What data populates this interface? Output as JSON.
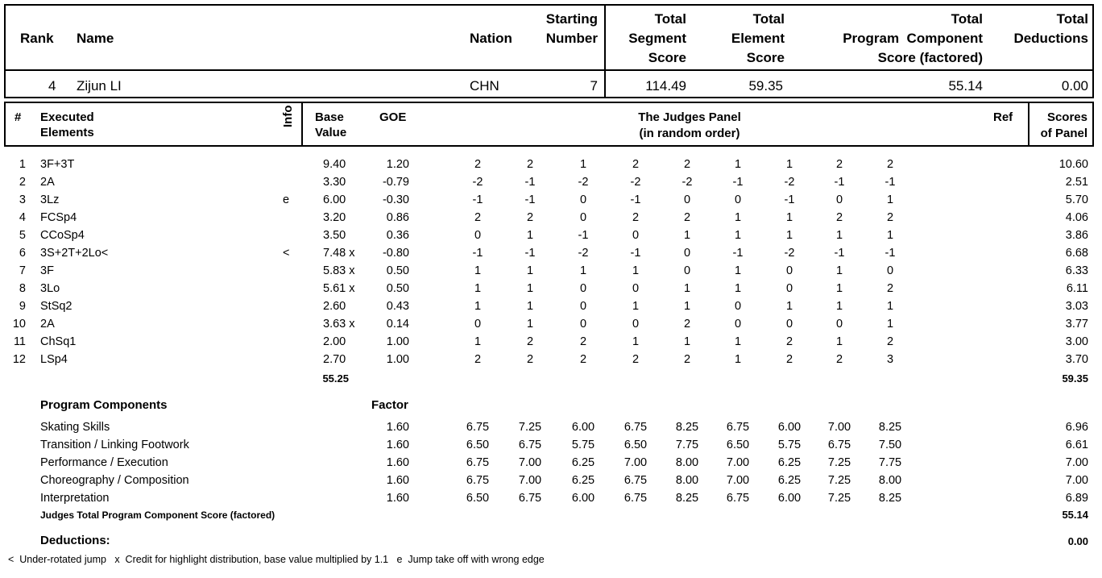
{
  "header": {
    "rank_label": "Rank",
    "name_label": "Name",
    "nation_label": "Nation",
    "starting_label": [
      "Starting",
      "Number"
    ],
    "tss_label": [
      "Total",
      "Segment",
      "Score"
    ],
    "tes_label": [
      "Total",
      "Element",
      "Score"
    ],
    "pcs_label": [
      "Total",
      "Program  Component",
      "Score (factored)"
    ],
    "ded_label": [
      "Total",
      "Deductions"
    ]
  },
  "skater": {
    "rank": "4",
    "name": "Zijun LI",
    "nation": "CHN",
    "starting_number": "7",
    "tss": "114.49",
    "tes": "59.35",
    "pcs": "55.14",
    "deductions": "0.00"
  },
  "elements_header": {
    "num": "#",
    "executed": [
      "Executed",
      "Elements"
    ],
    "info": "Info",
    "base": [
      "Base",
      "Value"
    ],
    "goe": "GOE",
    "judges": [
      "The Judges Panel",
      "(in random order)"
    ],
    "ref": "Ref",
    "scores": [
      "Scores",
      "of Panel"
    ]
  },
  "elements": [
    {
      "n": "1",
      "name": "3F+3T",
      "info": "",
      "base": "9.40",
      "goe": "1.20",
      "judges": [
        "2",
        "2",
        "1",
        "2",
        "2",
        "1",
        "1",
        "2",
        "2"
      ],
      "score": "10.60"
    },
    {
      "n": "2",
      "name": "2A",
      "info": "",
      "base": "3.30",
      "goe": "-0.79",
      "judges": [
        "-2",
        "-1",
        "-2",
        "-2",
        "-2",
        "-1",
        "-2",
        "-1",
        "-1"
      ],
      "score": "2.51"
    },
    {
      "n": "3",
      "name": "3Lz",
      "info": "e",
      "base": "6.00",
      "goe": "-0.30",
      "judges": [
        "-1",
        "-1",
        "0",
        "-1",
        "0",
        "0",
        "-1",
        "0",
        "1"
      ],
      "score": "5.70"
    },
    {
      "n": "4",
      "name": "FCSp4",
      "info": "",
      "base": "3.20",
      "goe": "0.86",
      "judges": [
        "2",
        "2",
        "0",
        "2",
        "2",
        "1",
        "1",
        "2",
        "2"
      ],
      "score": "4.06"
    },
    {
      "n": "5",
      "name": "CCoSp4",
      "info": "",
      "base": "3.50",
      "goe": "0.36",
      "judges": [
        "0",
        "1",
        "-1",
        "0",
        "1",
        "1",
        "1",
        "1",
        "1"
      ],
      "score": "3.86"
    },
    {
      "n": "6",
      "name": "3S+2T+2Lo<",
      "info": "<",
      "base": "7.48 x",
      "goe": "-0.80",
      "judges": [
        "-1",
        "-1",
        "-2",
        "-1",
        "0",
        "-1",
        "-2",
        "-1",
        "-1"
      ],
      "score": "6.68"
    },
    {
      "n": "7",
      "name": "3F",
      "info": "",
      "base": "5.83 x",
      "goe": "0.50",
      "judges": [
        "1",
        "1",
        "1",
        "1",
        "0",
        "1",
        "0",
        "1",
        "0"
      ],
      "score": "6.33"
    },
    {
      "n": "8",
      "name": "3Lo",
      "info": "",
      "base": "5.61 x",
      "goe": "0.50",
      "judges": [
        "1",
        "1",
        "0",
        "0",
        "1",
        "1",
        "0",
        "1",
        "2"
      ],
      "score": "6.11"
    },
    {
      "n": "9",
      "name": "StSq2",
      "info": "",
      "base": "2.60",
      "goe": "0.43",
      "judges": [
        "1",
        "1",
        "0",
        "1",
        "1",
        "0",
        "1",
        "1",
        "1"
      ],
      "score": "3.03"
    },
    {
      "n": "10",
      "name": "2A",
      "info": "",
      "base": "3.63 x",
      "goe": "0.14",
      "judges": [
        "0",
        "1",
        "0",
        "0",
        "2",
        "0",
        "0",
        "0",
        "1"
      ],
      "score": "3.77"
    },
    {
      "n": "11",
      "name": "ChSq1",
      "info": "",
      "base": "2.00",
      "goe": "1.00",
      "judges": [
        "1",
        "2",
        "2",
        "1",
        "1",
        "1",
        "2",
        "1",
        "2"
      ],
      "score": "3.00"
    },
    {
      "n": "12",
      "name": "LSp4",
      "info": "",
      "base": "2.70",
      "goe": "1.00",
      "judges": [
        "2",
        "2",
        "2",
        "2",
        "2",
        "1",
        "2",
        "2",
        "3"
      ],
      "score": "3.70"
    }
  ],
  "base_total": "55.25",
  "tes_total": "59.35",
  "components_header": {
    "title": "Program Components",
    "factor": "Factor"
  },
  "components": [
    {
      "name": "Skating Skills",
      "factor": "1.60",
      "judges": [
        "6.75",
        "7.25",
        "6.00",
        "6.75",
        "8.25",
        "6.75",
        "6.00",
        "7.00",
        "8.25"
      ],
      "score": "6.96"
    },
    {
      "name": "Transition / Linking Footwork",
      "factor": "1.60",
      "judges": [
        "6.50",
        "6.75",
        "5.75",
        "6.50",
        "7.75",
        "6.50",
        "5.75",
        "6.75",
        "7.50"
      ],
      "score": "6.61"
    },
    {
      "name": "Performance / Execution",
      "factor": "1.60",
      "judges": [
        "6.75",
        "7.00",
        "6.25",
        "7.00",
        "8.00",
        "7.00",
        "6.25",
        "7.25",
        "7.75"
      ],
      "score": "7.00"
    },
    {
      "name": "Choreography / Composition",
      "factor": "1.60",
      "judges": [
        "6.75",
        "7.00",
        "6.25",
        "6.75",
        "8.00",
        "7.00",
        "6.25",
        "7.25",
        "8.00"
      ],
      "score": "7.00"
    },
    {
      "name": "Interpretation",
      "factor": "1.60",
      "judges": [
        "6.50",
        "6.75",
        "6.00",
        "6.75",
        "8.25",
        "6.75",
        "6.00",
        "7.25",
        "8.25"
      ],
      "score": "6.89"
    }
  ],
  "pcs_total_label": "Judges Total Program Component Score (factored)",
  "pcs_total": "55.14",
  "deductions_label": "Deductions:",
  "deductions_total": "0.00",
  "legend": "<  Under-rotated jump   x  Credit for highlight distribution, base value multiplied by 1.1   e  Jump take off with wrong edge"
}
